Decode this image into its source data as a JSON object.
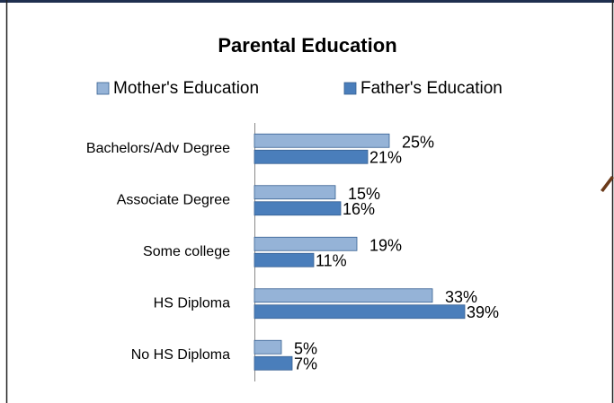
{
  "chart_data": {
    "type": "hbar",
    "title": "Parental Education",
    "categories": [
      "Bachelors/Adv Degree",
      "Associate Degree",
      "Some college",
      "HS Diploma",
      "No HS Diploma"
    ],
    "series": [
      {
        "name": "Mother's Education",
        "color": "#95b3d7",
        "values": [
          25,
          15,
          19,
          33,
          5
        ],
        "value_labels": [
          "25%",
          "15%",
          "19%",
          "33%",
          "5%"
        ]
      },
      {
        "name": "Father's Education",
        "color": "#4a7ebb",
        "values": [
          21,
          16,
          11,
          39,
          7
        ],
        "value_labels": [
          "21%",
          "16%",
          "11%",
          "39%",
          "7%"
        ]
      }
    ],
    "legend": "top"
  }
}
